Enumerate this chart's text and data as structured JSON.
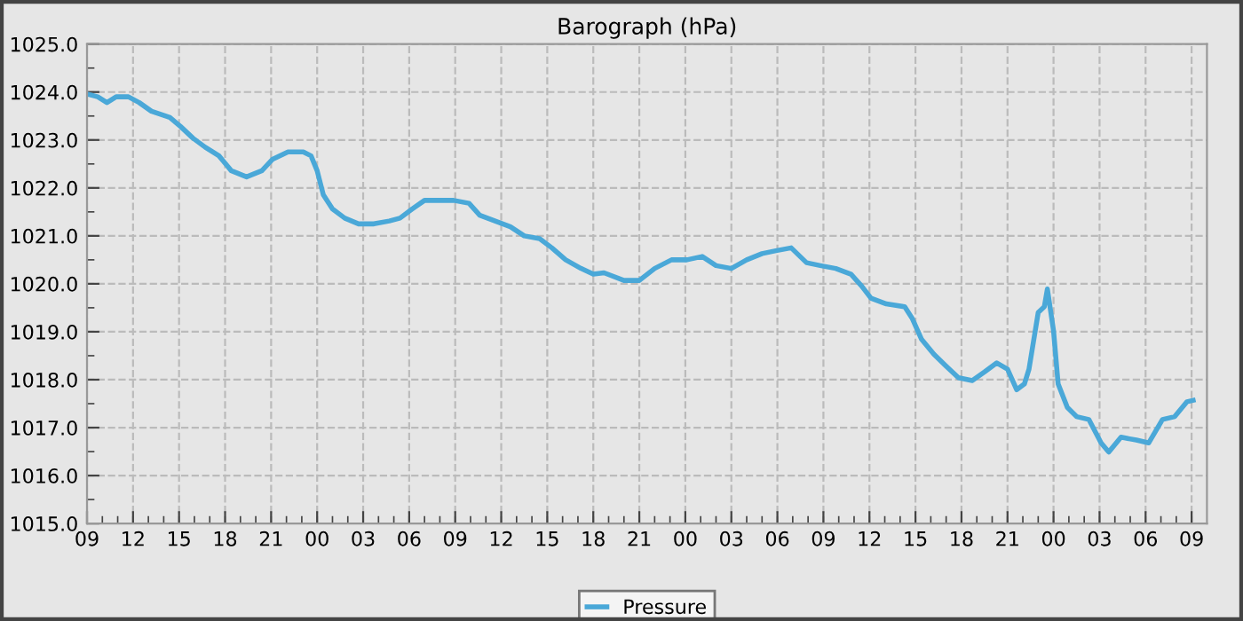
{
  "chart_data": {
    "type": "line",
    "title": "Barograph (hPa)",
    "x": [
      9,
      9.7,
      10.3,
      10.9,
      11.7,
      12.4,
      13.2,
      14.4,
      15.1,
      15.9,
      16.7,
      17.6,
      18.4,
      19.4,
      20.4,
      21.1,
      22.1,
      23.1,
      23.6,
      24.0,
      24.4,
      25.0,
      25.8,
      26.7,
      27.7,
      28.7,
      29.4,
      30.2,
      31.0,
      31.9,
      32.9,
      33.9,
      34.6,
      35.6,
      36.6,
      37.5,
      38.5,
      39.3,
      40.2,
      41.2,
      42.0,
      42.7,
      44.0,
      45.0,
      46.0,
      47.1,
      48.1,
      49.1,
      50.0,
      51.0,
      52.0,
      53.0,
      53.9,
      54.9,
      55.9,
      56.8,
      57.8,
      58.8,
      59.5,
      60.1,
      61.1,
      62.3,
      62.8,
      63.4,
      64.2,
      65.0,
      65.8,
      66.7,
      67.5,
      68.3,
      69.0,
      69.6,
      70.1,
      70.4,
      71.0,
      71.4,
      71.6,
      72.0,
      72.3,
      72.9,
      73.5,
      74.3,
      75.1,
      75.6,
      76.4,
      77.4,
      78.2,
      79.1,
      79.9,
      80.7,
      81.1
    ],
    "series": [
      {
        "name": "Pressure",
        "color": "#4aa8d8",
        "values": [
          1023.96,
          1023.9,
          1023.78,
          1023.9,
          1023.9,
          1023.78,
          1023.6,
          1023.47,
          1023.28,
          1023.04,
          1022.85,
          1022.67,
          1022.36,
          1022.23,
          1022.36,
          1022.6,
          1022.75,
          1022.75,
          1022.67,
          1022.36,
          1021.86,
          1021.56,
          1021.37,
          1021.25,
          1021.25,
          1021.31,
          1021.37,
          1021.56,
          1021.74,
          1021.74,
          1021.74,
          1021.68,
          1021.43,
          1021.31,
          1021.19,
          1021.0,
          1020.94,
          1020.75,
          1020.5,
          1020.32,
          1020.2,
          1020.23,
          1020.07,
          1020.07,
          1020.32,
          1020.5,
          1020.5,
          1020.57,
          1020.38,
          1020.32,
          1020.5,
          1020.63,
          1020.69,
          1020.75,
          1020.44,
          1020.38,
          1020.32,
          1020.2,
          1019.95,
          1019.7,
          1019.58,
          1019.52,
          1019.27,
          1018.84,
          1018.53,
          1018.28,
          1018.04,
          1017.98,
          1018.16,
          1018.35,
          1018.22,
          1017.79,
          1017.91,
          1018.22,
          1019.4,
          1019.52,
          1019.89,
          1019.02,
          1017.91,
          1017.42,
          1017.23,
          1017.17,
          1016.68,
          1016.49,
          1016.8,
          1016.74,
          1016.68,
          1017.17,
          1017.23,
          1017.54,
          1017.57
        ]
      }
    ],
    "xlim": [
      9,
      82
    ],
    "xticks": [
      {
        "value": 9,
        "label": "09"
      },
      {
        "value": 12,
        "label": "12"
      },
      {
        "value": 15,
        "label": "15"
      },
      {
        "value": 18,
        "label": "18"
      },
      {
        "value": 21,
        "label": "21"
      },
      {
        "value": 24,
        "label": "00"
      },
      {
        "value": 27,
        "label": "03"
      },
      {
        "value": 30,
        "label": "06"
      },
      {
        "value": 33,
        "label": "09"
      },
      {
        "value": 36,
        "label": "12"
      },
      {
        "value": 39,
        "label": "15"
      },
      {
        "value": 42,
        "label": "18"
      },
      {
        "value": 45,
        "label": "21"
      },
      {
        "value": 48,
        "label": "00"
      },
      {
        "value": 51,
        "label": "03"
      },
      {
        "value": 54,
        "label": "06"
      },
      {
        "value": 57,
        "label": "09"
      },
      {
        "value": 60,
        "label": "12"
      },
      {
        "value": 63,
        "label": "15"
      },
      {
        "value": 66,
        "label": "18"
      },
      {
        "value": 69,
        "label": "21"
      },
      {
        "value": 72,
        "label": "00"
      },
      {
        "value": 75,
        "label": "03"
      },
      {
        "value": 78,
        "label": "06"
      },
      {
        "value": 81,
        "label": "09"
      }
    ],
    "ylim": [
      1015,
      1025
    ],
    "yticks": [
      {
        "value": 1015,
        "label": "1015.0"
      },
      {
        "value": 1016,
        "label": "1016.0"
      },
      {
        "value": 1017,
        "label": "1017.0"
      },
      {
        "value": 1018,
        "label": "1018.0"
      },
      {
        "value": 1019,
        "label": "1019.0"
      },
      {
        "value": 1020,
        "label": "1020.0"
      },
      {
        "value": 1021,
        "label": "1021.0"
      },
      {
        "value": 1022,
        "label": "1022.0"
      },
      {
        "value": 1023,
        "label": "1023.0"
      },
      {
        "value": 1024,
        "label": "1024.0"
      },
      {
        "value": 1025,
        "label": "1025.0"
      }
    ],
    "grid": true,
    "legend": "bottom",
    "line_style": "solid",
    "marker": "none"
  }
}
